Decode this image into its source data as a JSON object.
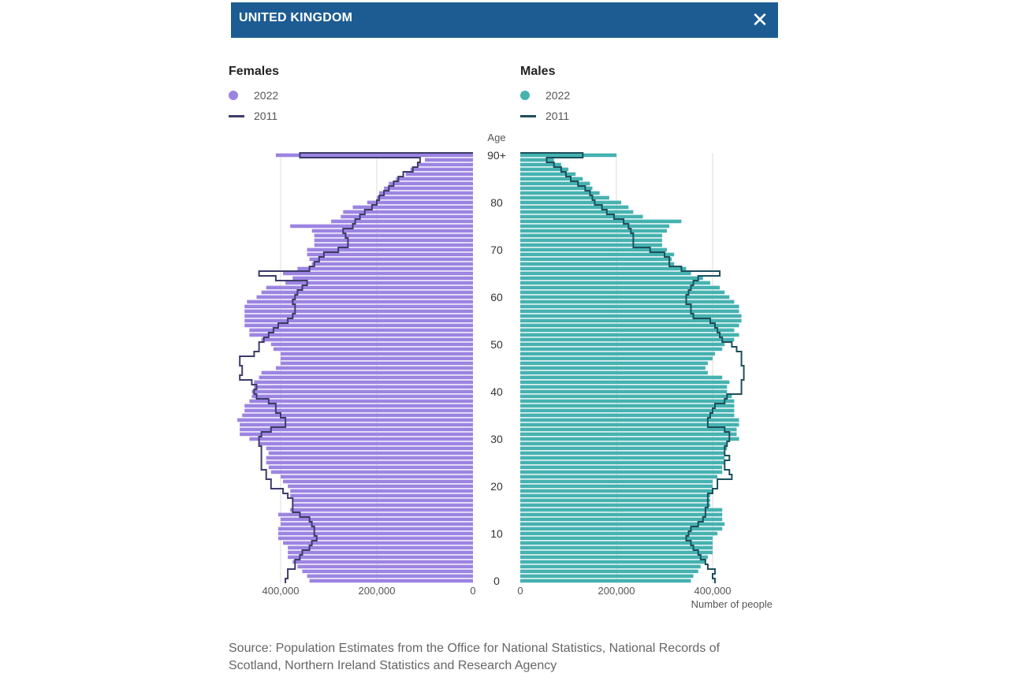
{
  "header": {
    "title": "UNITED KINGDOM",
    "close_icon": "close-icon"
  },
  "legends": {
    "females": {
      "title": "Females",
      "current": "2022",
      "previous": "2011"
    },
    "males": {
      "title": "Males",
      "current": "2022",
      "previous": "2011"
    }
  },
  "colors": {
    "female_bar": "#9c84e2",
    "female_line": "#3d3c68",
    "male_bar": "#45b2b0",
    "male_line": "#1e4f5c",
    "header": "#1d5c93"
  },
  "source": "Source: Population Estimates from the Office for National Statistics, National Records of Scotland, Northern Ireland Statistics and Research Agency",
  "chart_data": {
    "type": "bar",
    "subtype": "population-pyramid",
    "y_axis_label": "Age",
    "age_ticks": [
      "0",
      "10",
      "20",
      "30",
      "40",
      "50",
      "60",
      "70",
      "80",
      "90+"
    ],
    "x_axis_label": "Number of people",
    "x_ticks_females": [
      "400,000",
      "200,000",
      "0"
    ],
    "x_ticks_males": [
      "0",
      "200,000",
      "400,000"
    ],
    "xlim": [
      0,
      450000
    ],
    "ages": [
      "0",
      "1",
      "2",
      "3",
      "4",
      "5",
      "6",
      "7",
      "8",
      "9",
      "10",
      "11",
      "12",
      "13",
      "14",
      "15",
      "16",
      "17",
      "18",
      "19",
      "20",
      "21",
      "22",
      "23",
      "24",
      "25",
      "26",
      "27",
      "28",
      "29",
      "30",
      "31",
      "32",
      "33",
      "34",
      "35",
      "36",
      "37",
      "38",
      "39",
      "40",
      "41",
      "42",
      "43",
      "44",
      "45",
      "46",
      "47",
      "48",
      "49",
      "50",
      "51",
      "52",
      "53",
      "54",
      "55",
      "56",
      "57",
      "58",
      "59",
      "60",
      "61",
      "62",
      "63",
      "64",
      "65",
      "66",
      "67",
      "68",
      "69",
      "70",
      "71",
      "72",
      "73",
      "74",
      "75",
      "76",
      "77",
      "78",
      "79",
      "80",
      "81",
      "82",
      "83",
      "84",
      "85",
      "86",
      "87",
      "88",
      "89",
      "90+"
    ],
    "series": [
      {
        "name": "Females 2022",
        "values": [
          340000,
          345000,
          355000,
          365000,
          375000,
          385000,
          385000,
          385000,
          395000,
          405000,
          405000,
          405000,
          400000,
          400000,
          405000,
          380000,
          375000,
          375000,
          380000,
          380000,
          385000,
          395000,
          400000,
          420000,
          425000,
          430000,
          430000,
          425000,
          430000,
          445000,
          465000,
          485000,
          485000,
          485000,
          490000,
          480000,
          475000,
          475000,
          465000,
          460000,
          460000,
          455000,
          455000,
          445000,
          440000,
          410000,
          400000,
          400000,
          400000,
          415000,
          420000,
          440000,
          465000,
          465000,
          475000,
          475000,
          475000,
          475000,
          475000,
          470000,
          450000,
          440000,
          430000,
          390000,
          375000,
          395000,
          365000,
          335000,
          340000,
          345000,
          345000,
          330000,
          330000,
          330000,
          335000,
          380000,
          295000,
          275000,
          270000,
          250000,
          220000,
          200000,
          195000,
          185000,
          175000,
          160000,
          140000,
          130000,
          115000,
          100000,
          410000
        ]
      },
      {
        "name": "Females 2011",
        "values": [
          390000,
          385000,
          385000,
          370000,
          370000,
          360000,
          355000,
          340000,
          335000,
          325000,
          330000,
          330000,
          335000,
          340000,
          360000,
          375000,
          375000,
          375000,
          385000,
          395000,
          420000,
          420000,
          430000,
          430000,
          440000,
          440000,
          440000,
          440000,
          440000,
          445000,
          445000,
          440000,
          420000,
          390000,
          390000,
          400000,
          410000,
          410000,
          425000,
          450000,
          455000,
          450000,
          460000,
          485000,
          480000,
          480000,
          485000,
          485000,
          455000,
          445000,
          445000,
          435000,
          425000,
          415000,
          405000,
          385000,
          375000,
          370000,
          370000,
          375000,
          370000,
          365000,
          355000,
          345000,
          410000,
          445000,
          340000,
          330000,
          320000,
          310000,
          280000,
          260000,
          260000,
          265000,
          270000,
          250000,
          245000,
          235000,
          225000,
          210000,
          200000,
          195000,
          185000,
          175000,
          165000,
          155000,
          145000,
          125000,
          115000,
          110000,
          360000
        ]
      },
      {
        "name": "Males 2022",
        "values": [
          355000,
          360000,
          370000,
          375000,
          385000,
          390000,
          400000,
          400000,
          400000,
          400000,
          410000,
          420000,
          425000,
          420000,
          420000,
          420000,
          395000,
          395000,
          395000,
          400000,
          400000,
          400000,
          410000,
          420000,
          420000,
          425000,
          425000,
          425000,
          430000,
          430000,
          455000,
          450000,
          450000,
          455000,
          455000,
          445000,
          445000,
          445000,
          445000,
          440000,
          430000,
          430000,
          435000,
          420000,
          390000,
          385000,
          390000,
          400000,
          405000,
          420000,
          425000,
          445000,
          455000,
          445000,
          455000,
          460000,
          460000,
          455000,
          455000,
          445000,
          435000,
          425000,
          415000,
          395000,
          380000,
          355000,
          345000,
          320000,
          315000,
          320000,
          305000,
          295000,
          295000,
          295000,
          305000,
          310000,
          335000,
          255000,
          235000,
          225000,
          210000,
          185000,
          165000,
          150000,
          145000,
          130000,
          115000,
          100000,
          85000,
          70000,
          200000
        ]
      },
      {
        "name": "Males 2011",
        "values": [
          405000,
          400000,
          405000,
          390000,
          385000,
          375000,
          370000,
          360000,
          355000,
          345000,
          350000,
          355000,
          370000,
          380000,
          385000,
          385000,
          390000,
          390000,
          390000,
          400000,
          410000,
          410000,
          440000,
          435000,
          425000,
          425000,
          435000,
          425000,
          425000,
          430000,
          435000,
          435000,
          425000,
          390000,
          390000,
          395000,
          400000,
          405000,
          425000,
          430000,
          460000,
          460000,
          460000,
          465000,
          465000,
          465000,
          460000,
          460000,
          460000,
          450000,
          440000,
          420000,
          415000,
          410000,
          405000,
          395000,
          360000,
          355000,
          355000,
          345000,
          345000,
          350000,
          355000,
          360000,
          370000,
          415000,
          335000,
          310000,
          310000,
          300000,
          270000,
          235000,
          235000,
          235000,
          230000,
          225000,
          215000,
          195000,
          180000,
          170000,
          155000,
          150000,
          145000,
          135000,
          120000,
          105000,
          95000,
          85000,
          70000,
          55000,
          130000
        ]
      }
    ]
  }
}
